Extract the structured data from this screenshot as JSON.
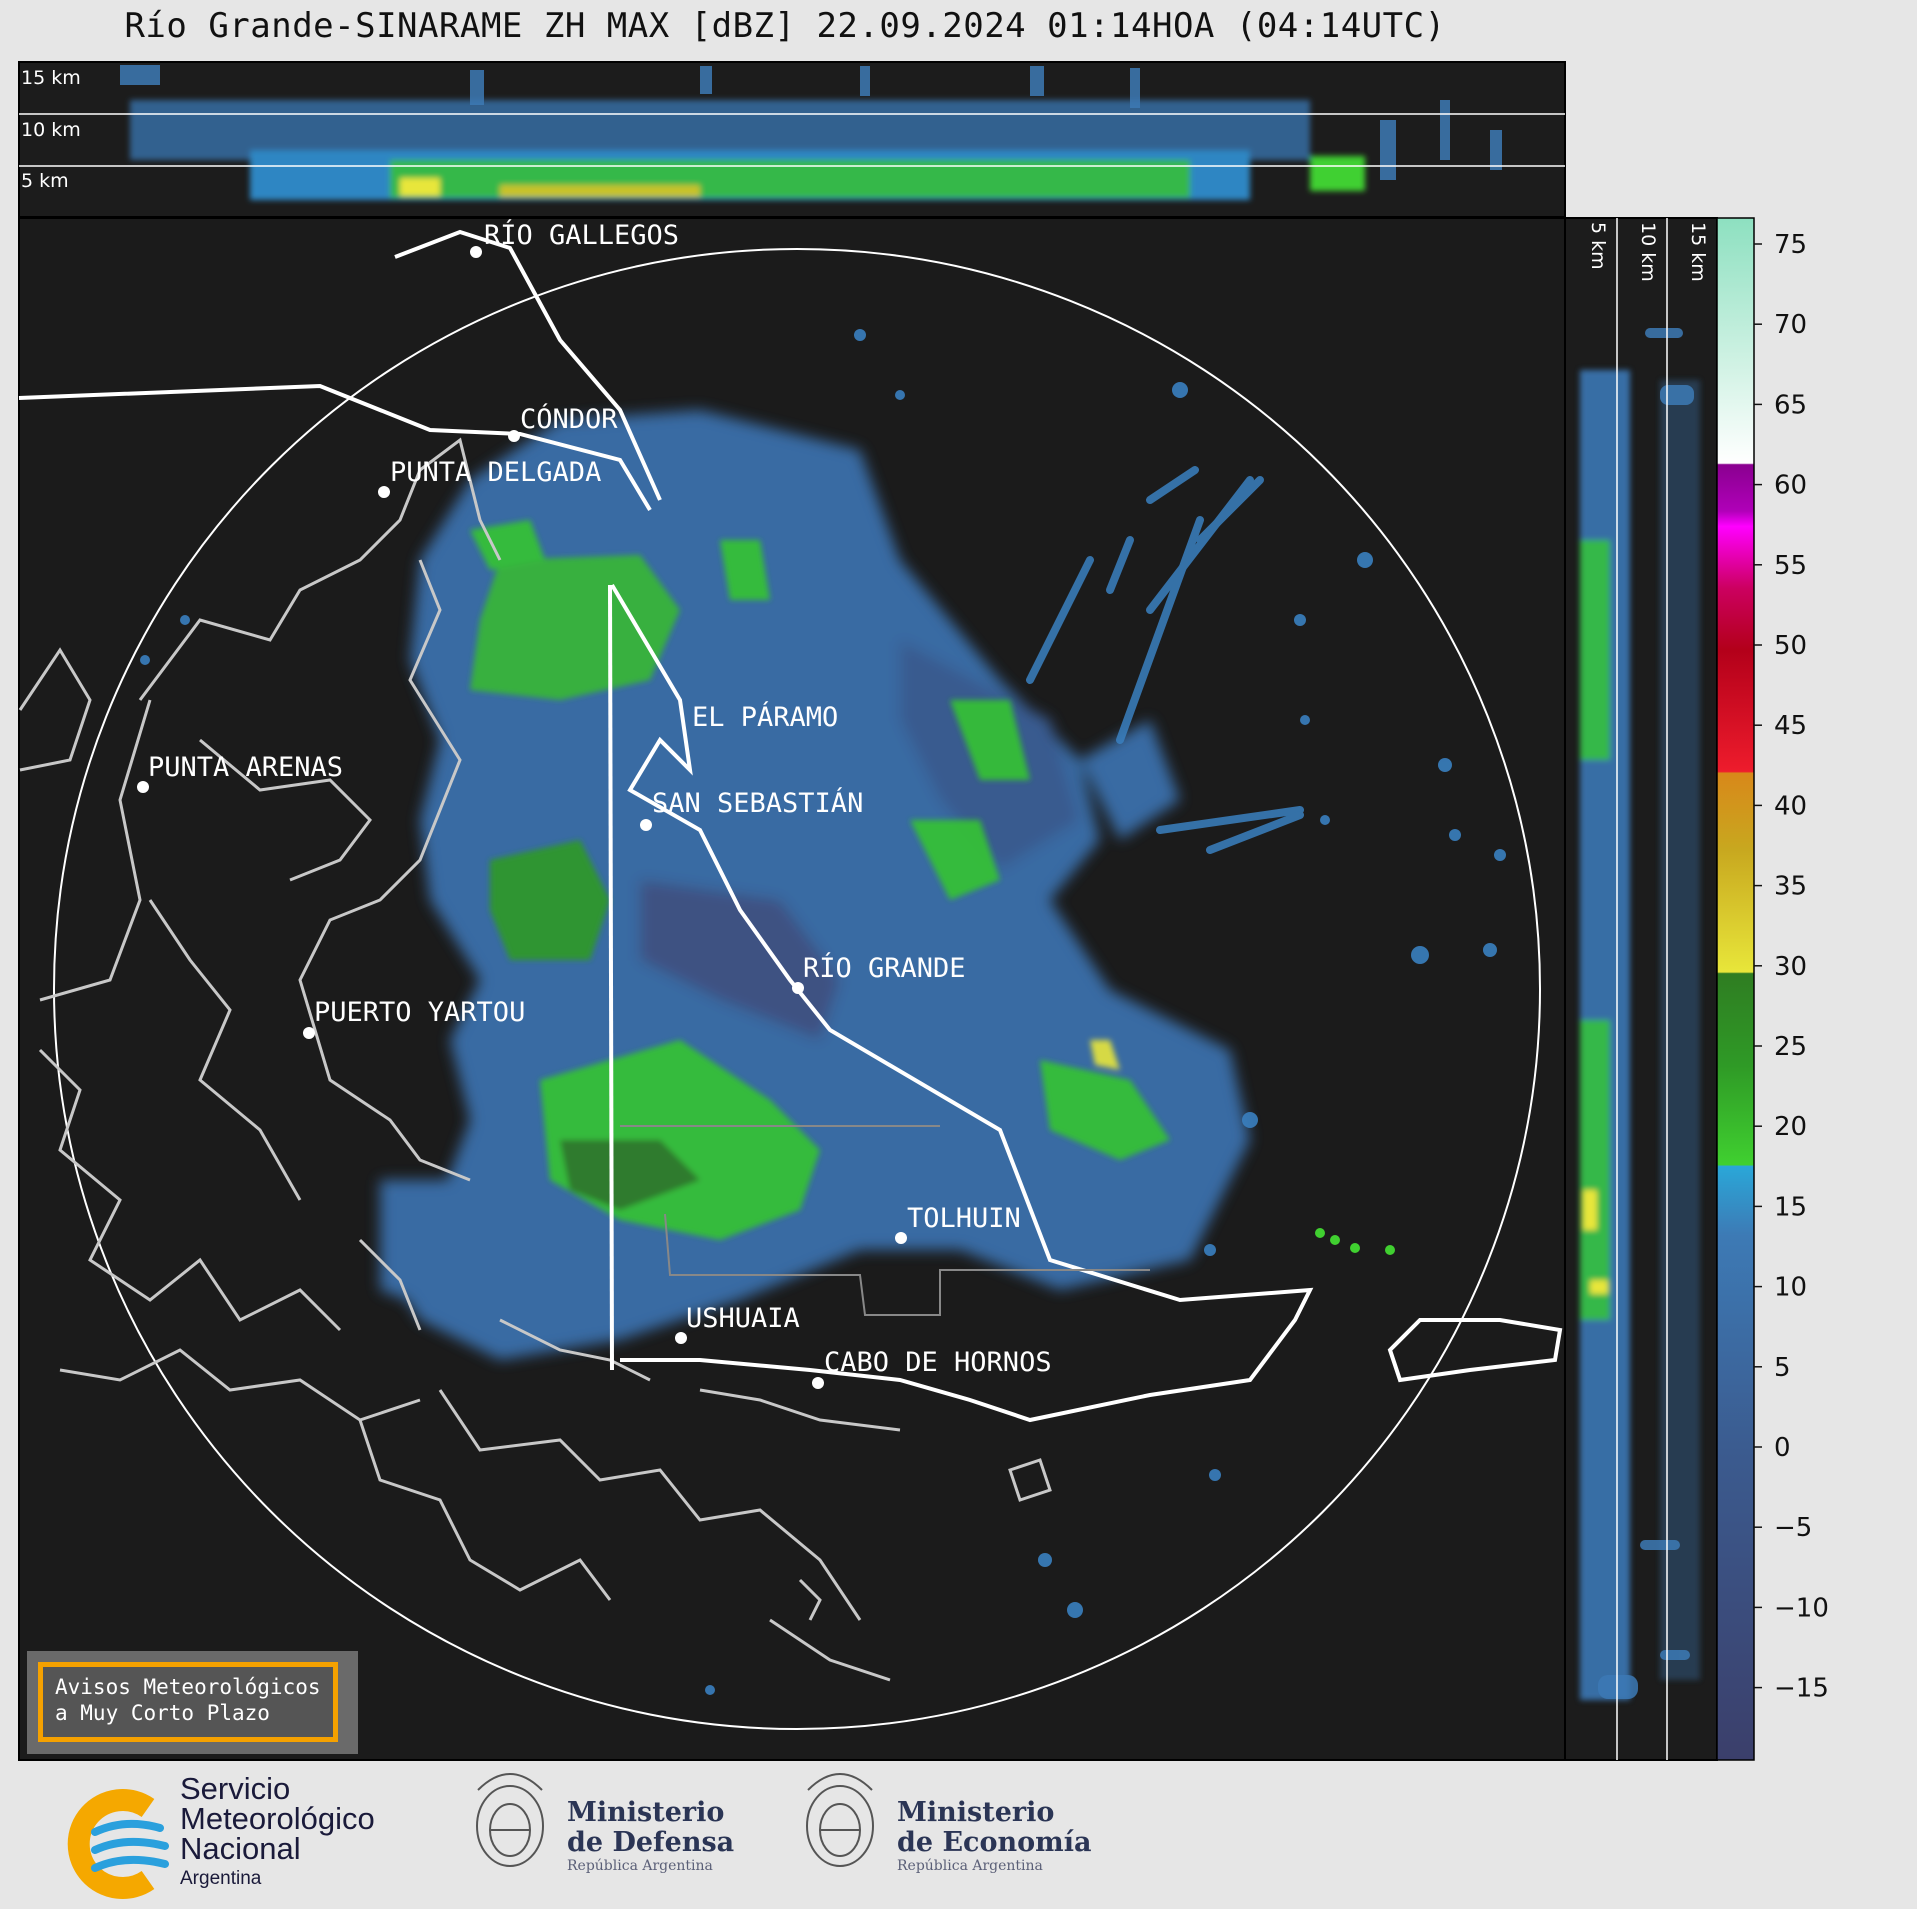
{
  "title": "Río Grande-SINARAME ZH MAX [dBZ] 22.09.2024 01:14HOA (04:14UTC)",
  "top_panel": {
    "height_labels": [
      "15 km",
      "10 km",
      "5 km"
    ]
  },
  "side_panel": {
    "height_labels": [
      "5 km",
      "10 km",
      "15 km"
    ]
  },
  "cities": [
    {
      "name": "RÍO GALLEGOS"
    },
    {
      "name": "CÓNDOR"
    },
    {
      "name": "PUNTA DELGADA"
    },
    {
      "name": "EL PÁRAMO"
    },
    {
      "name": "PUNTA ARENAS"
    },
    {
      "name": "SAN SEBASTIÁN"
    },
    {
      "name": "RÍO GRANDE"
    },
    {
      "name": "PUERTO YARTOU"
    },
    {
      "name": "TOLHUIN"
    },
    {
      "name": "USHUAIA"
    },
    {
      "name": "CABO DE HORNOS"
    }
  ],
  "colorbar": {
    "unit": "dBZ",
    "ticks": [
      "75",
      "70",
      "65",
      "60",
      "55",
      "50",
      "45",
      "40",
      "35",
      "30",
      "25",
      "20",
      "15",
      "10",
      "5",
      "0",
      "−5",
      "−10",
      "−15"
    ],
    "colors": {
      "neg": "#3b3f6b",
      "low": "#3d6aa3",
      "mid": "#2f86c3",
      "cyan": "#2aa7d8",
      "green": "#35c431",
      "darkgreen": "#2f7d22",
      "yellow": "#e8e63a",
      "orange": "#d8881a",
      "red": "#d01824",
      "magenta": "#d400d4",
      "purple": "#8a0090",
      "mint": "#8de0c0"
    }
  },
  "notice": {
    "line1": "Avisos Meteorológicos",
    "line2": "a Muy Corto Plazo"
  },
  "logos": {
    "smn": {
      "line1": "Servicio",
      "line2": "Meteorológico",
      "line3": "Nacional",
      "line4": "Argentina"
    },
    "defensa": {
      "line1": "Ministerio",
      "line2": "de Defensa",
      "sub": "República Argentina"
    },
    "economia": {
      "line1": "Ministerio",
      "line2": "de Economía",
      "sub": "República Argentina"
    }
  }
}
